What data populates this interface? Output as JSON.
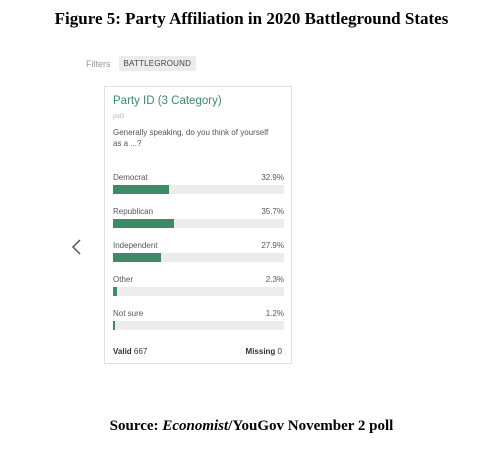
{
  "figure": {
    "title": "Figure 5: Party Affiliation in 2020 Battleground States"
  },
  "filters": {
    "label": "Filters",
    "chip": "BATTLEGROUND"
  },
  "nav": {
    "prev_icon": "chevron-left-icon"
  },
  "card": {
    "title": "Party ID (3 Category)",
    "code": "pid3",
    "question": "Generally speaking, do you think of yourself as a ...?",
    "accent_color": "#3c8a68",
    "rows": [
      {
        "label": "Democrat",
        "value": "32.9%",
        "pct": 32.9
      },
      {
        "label": "Republican",
        "value": "35.7%",
        "pct": 35.7
      },
      {
        "label": "Independent",
        "value": "27.9%",
        "pct": 27.9
      },
      {
        "label": "Other",
        "value": "2.3%",
        "pct": 2.3
      },
      {
        "label": "Not sure",
        "value": "1.2%",
        "pct": 1.2
      }
    ],
    "valid_label": "Valid",
    "valid_count": "667",
    "missing_label": "Missing",
    "missing_count": "0"
  },
  "source": {
    "prefix": "Source: ",
    "publication": "Economist",
    "suffix": "/YouGov November 2 poll"
  }
}
